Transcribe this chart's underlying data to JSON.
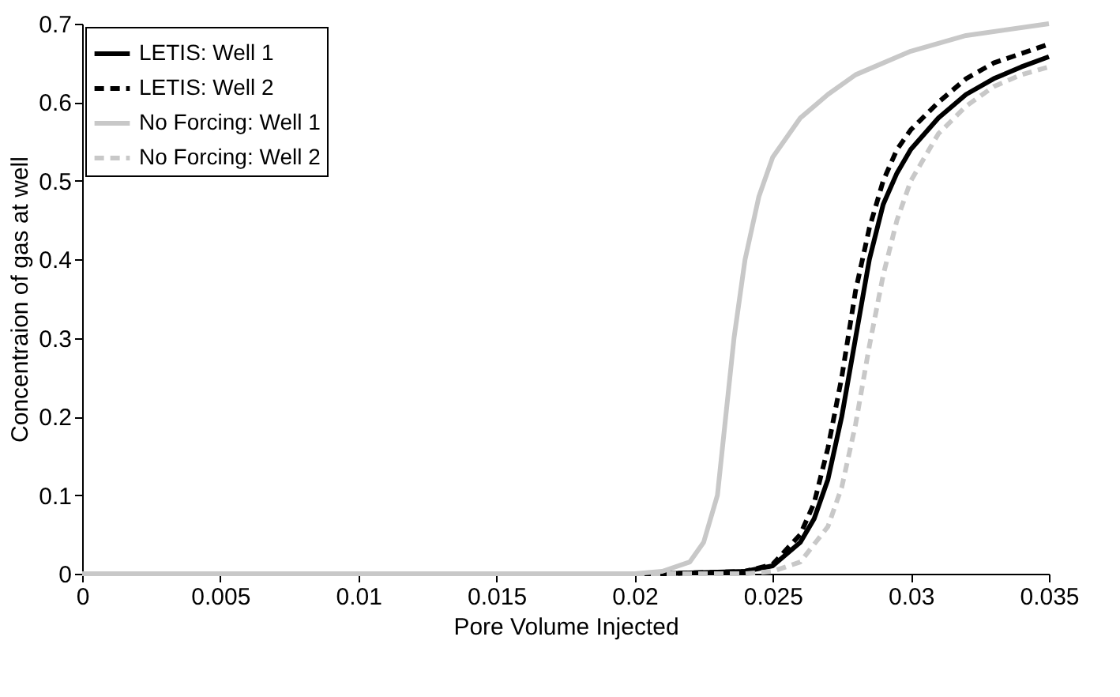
{
  "chart_data": {
    "type": "line",
    "xlabel": "Pore Volume Injected",
    "ylabel": "Concentraion of gas at well",
    "xlim": [
      0,
      0.035
    ],
    "ylim": [
      0,
      0.7
    ],
    "xticks": [
      0,
      0.005,
      0.01,
      0.015,
      0.02,
      0.025,
      0.03,
      0.035
    ],
    "yticks": [
      0,
      0.1,
      0.2,
      0.3,
      0.4,
      0.5,
      0.6,
      0.7
    ],
    "grid": false,
    "legend": "top left",
    "marker": "none",
    "series": [
      {
        "name": "LETIS: Well 1",
        "color": "#000000",
        "line_style": "solid",
        "x": [
          0,
          0.021,
          0.024,
          0.025,
          0.026,
          0.0265,
          0.027,
          0.0275,
          0.028,
          0.0285,
          0.029,
          0.0295,
          0.03,
          0.031,
          0.032,
          0.033,
          0.034,
          0.035
        ],
        "values": [
          0,
          0,
          0.003,
          0.01,
          0.04,
          0.07,
          0.12,
          0.2,
          0.3,
          0.4,
          0.47,
          0.51,
          0.54,
          0.58,
          0.61,
          0.63,
          0.645,
          0.658
        ]
      },
      {
        "name": "LETIS: Well 2",
        "color": "#000000",
        "line_style": "dashed",
        "x": [
          0.021,
          0.024,
          0.025,
          0.026,
          0.0265,
          0.027,
          0.0275,
          0.028,
          0.0285,
          0.029,
          0.0295,
          0.03,
          0.031,
          0.032,
          0.033,
          0.034,
          0.035
        ],
        "values": [
          0,
          0.003,
          0.012,
          0.05,
          0.09,
          0.16,
          0.25,
          0.36,
          0.44,
          0.5,
          0.54,
          0.565,
          0.6,
          0.63,
          0.65,
          0.662,
          0.674
        ]
      },
      {
        "name": "No Forcing: Well 1",
        "color": "#c8c8c8",
        "line_style": "solid",
        "x": [
          0,
          0.02,
          0.021,
          0.022,
          0.0225,
          0.023,
          0.0233,
          0.0236,
          0.024,
          0.0245,
          0.025,
          0.026,
          0.027,
          0.028,
          0.03,
          0.032,
          0.035
        ],
        "values": [
          0,
          0,
          0.003,
          0.015,
          0.04,
          0.1,
          0.2,
          0.3,
          0.4,
          0.48,
          0.53,
          0.58,
          0.61,
          0.635,
          0.665,
          0.685,
          0.7
        ]
      },
      {
        "name": "No Forcing: Well 2",
        "color": "#c8c8c8",
        "line_style": "dashed",
        "x": [
          0,
          0.024,
          0.025,
          0.026,
          0.027,
          0.0275,
          0.028,
          0.0285,
          0.029,
          0.0295,
          0.03,
          0.031,
          0.032,
          0.033,
          0.034,
          0.035
        ],
        "values": [
          0,
          0,
          0.003,
          0.015,
          0.06,
          0.11,
          0.19,
          0.29,
          0.38,
          0.45,
          0.5,
          0.56,
          0.595,
          0.62,
          0.635,
          0.645
        ]
      }
    ]
  }
}
